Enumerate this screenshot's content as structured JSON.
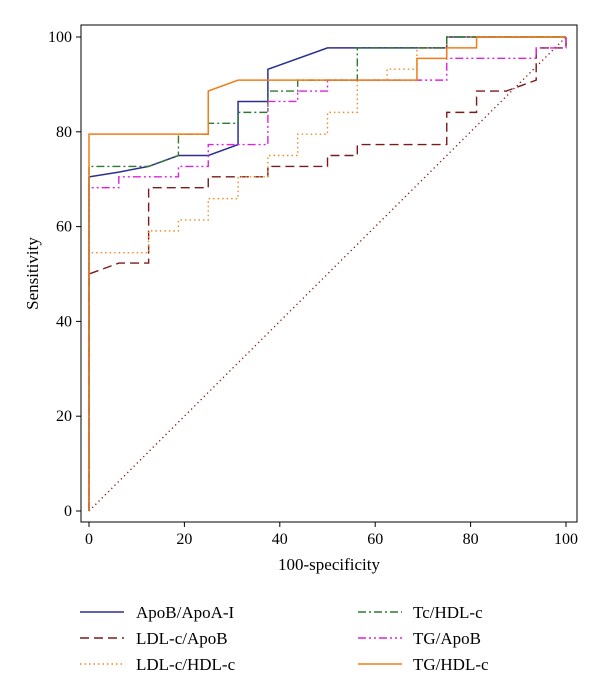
{
  "chart_data": {
    "type": "line",
    "title": "",
    "xlabel": "100-specificity",
    "ylabel": "Sensitivity",
    "xlim": [
      0,
      100
    ],
    "ylim": [
      0,
      100
    ],
    "x_ticks": [
      0,
      20,
      40,
      60,
      80,
      100
    ],
    "y_ticks": [
      0,
      20,
      40,
      60,
      80,
      100
    ],
    "grid": false,
    "legend_position": "bottom",
    "series": [
      {
        "name": "ApoB/ApoA-I",
        "color": "#2b2f8f",
        "dash": "solid",
        "points": [
          [
            0,
            0
          ],
          [
            0,
            70.5
          ],
          [
            6.25,
            71.5
          ],
          [
            12.5,
            72.7
          ],
          [
            18.75,
            75
          ],
          [
            25,
            75
          ],
          [
            31.25,
            77.3
          ],
          [
            31.25,
            86.4
          ],
          [
            37.5,
            86.4
          ],
          [
            37.5,
            93.2
          ],
          [
            50,
            97.7
          ],
          [
            75,
            97.7
          ],
          [
            75,
            100
          ],
          [
            100,
            100
          ]
        ]
      },
      {
        "name": "LDL-c/ApoB",
        "color": "#7a1a1a",
        "dash": "long-dash",
        "points": [
          [
            0,
            0
          ],
          [
            0,
            50
          ],
          [
            6.25,
            52.3
          ],
          [
            12.5,
            52.3
          ],
          [
            12.5,
            68.2
          ],
          [
            25,
            68.2
          ],
          [
            25,
            70.5
          ],
          [
            37.5,
            70.5
          ],
          [
            37.5,
            72.7
          ],
          [
            50,
            72.7
          ],
          [
            50,
            75
          ],
          [
            56.25,
            75
          ],
          [
            56.25,
            77.3
          ],
          [
            75,
            77.3
          ],
          [
            75,
            84.1
          ],
          [
            81.25,
            84.1
          ],
          [
            81.25,
            88.6
          ],
          [
            87.5,
            88.6
          ],
          [
            93.75,
            90.9
          ],
          [
            93.75,
            97.7
          ],
          [
            100,
            97.7
          ],
          [
            100,
            100
          ]
        ]
      },
      {
        "name": "LDL-c/HDL-c",
        "color": "#f08a24",
        "dash": "dotted",
        "points": [
          [
            0,
            0
          ],
          [
            0,
            54.5
          ],
          [
            12.5,
            54.5
          ],
          [
            12.5,
            59.1
          ],
          [
            18.75,
            59.1
          ],
          [
            18.75,
            61.4
          ],
          [
            25,
            61.4
          ],
          [
            25,
            65.9
          ],
          [
            31.25,
            65.9
          ],
          [
            31.25,
            70.5
          ],
          [
            37.5,
            70.5
          ],
          [
            37.5,
            75
          ],
          [
            43.75,
            75
          ],
          [
            43.75,
            79.5
          ],
          [
            50,
            79.5
          ],
          [
            50,
            84.1
          ],
          [
            56.25,
            84.1
          ],
          [
            56.25,
            90.9
          ],
          [
            62.5,
            90.9
          ],
          [
            62.5,
            93.2
          ],
          [
            68.75,
            93.2
          ],
          [
            68.75,
            97.7
          ],
          [
            75,
            97.7
          ],
          [
            75,
            100
          ],
          [
            100,
            100
          ]
        ]
      },
      {
        "name": "Tc/HDL-c",
        "color": "#2f7a2f",
        "dash": "dash-dot",
        "points": [
          [
            0,
            0
          ],
          [
            0,
            72.7
          ],
          [
            12.5,
            72.7
          ],
          [
            18.75,
            75
          ],
          [
            18.75,
            79.5
          ],
          [
            25,
            79.5
          ],
          [
            25,
            81.8
          ],
          [
            31.25,
            81.8
          ],
          [
            31.25,
            84.1
          ],
          [
            37.5,
            84.1
          ],
          [
            37.5,
            88.6
          ],
          [
            43.75,
            88.6
          ],
          [
            43.75,
            90.9
          ],
          [
            56.25,
            90.9
          ],
          [
            56.25,
            97.7
          ],
          [
            75,
            97.7
          ],
          [
            75,
            100
          ],
          [
            100,
            100
          ]
        ]
      },
      {
        "name": "TG/ApoB",
        "color": "#e020e0",
        "dash": "dash-dot-dot",
        "points": [
          [
            0,
            0
          ],
          [
            0,
            68.2
          ],
          [
            6.25,
            68.2
          ],
          [
            6.25,
            70.5
          ],
          [
            12.5,
            70.5
          ],
          [
            18.75,
            70.5
          ],
          [
            18.75,
            72.7
          ],
          [
            25,
            72.7
          ],
          [
            25,
            77.3
          ],
          [
            37.5,
            77.3
          ],
          [
            37.5,
            86.4
          ],
          [
            43.75,
            86.4
          ],
          [
            43.75,
            88.6
          ],
          [
            50,
            88.6
          ],
          [
            50,
            90.9
          ],
          [
            68.75,
            90.9
          ],
          [
            75,
            90.9
          ],
          [
            75,
            95.5
          ],
          [
            93.75,
            95.5
          ],
          [
            93.75,
            97.7
          ],
          [
            100,
            97.7
          ],
          [
            100,
            100
          ]
        ]
      },
      {
        "name": "TG/HDL-c",
        "color": "#f07d17",
        "dash": "solid",
        "points": [
          [
            0,
            0
          ],
          [
            0,
            79.5
          ],
          [
            25,
            79.5
          ],
          [
            25,
            88.6
          ],
          [
            31.25,
            90.9
          ],
          [
            68.75,
            90.9
          ],
          [
            68.75,
            95.5
          ],
          [
            75,
            95.5
          ],
          [
            75,
            97.7
          ],
          [
            81.25,
            97.7
          ],
          [
            81.25,
            100
          ],
          [
            100,
            100
          ]
        ]
      }
    ],
    "reference_line": {
      "color": "#8b1a1a",
      "dash": "fine-dotted",
      "points": [
        [
          0,
          0
        ],
        [
          100,
          100
        ]
      ]
    }
  }
}
